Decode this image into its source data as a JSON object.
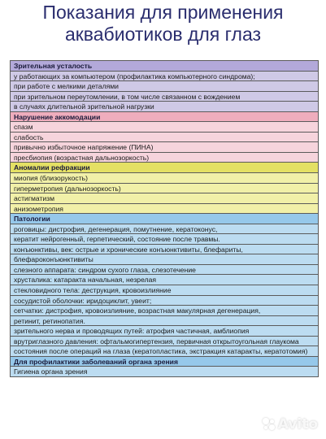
{
  "title_line1": "Показания для применения",
  "title_line2": "аквабиотиков для глаз",
  "groups": [
    {
      "header": "Зрительная усталость",
      "items": [
        "у работающих за компьютером (профилактика компьютерного синдрома);",
        "при работе с мелкими деталями",
        "при зрительном переутомлении, в том числе связанном с вождением",
        "в случаях длительной зрительной нагрузки"
      ]
    },
    {
      "header": "Нарушение аккомодации",
      "items": [
        "спазм",
        "слабость",
        "привычно избыточное напряжение (ПИНА)",
        "пресбиопия (возрастная дальнозоркость)"
      ]
    },
    {
      "header": "Аномалии рефракции",
      "items": [
        "миопия (близорукость)",
        "гиперметропия (дальнозоркость)",
        "астигматизм",
        "анизометропия"
      ]
    },
    {
      "header": "Патологии",
      "items": [
        "роговицы: дистрофия, дегенерация, помутнение, кератоконус,",
        "кератит нейрогенный, герпетический, состояние после травмы.",
        "конъюнктивы, век: острые и хронические конъюнктивиты, блефариты,",
        "блефароконъюнктивиты",
        "слезного аппарата: синдром сухого глаза, слезотечение",
        "хрусталика: катаракта начальная, незрелая",
        "стекловидного тела: деструкция, кровоизлияние",
        "сосудистой оболочки: иридоциклит, увеит;",
        "сетчатки: дистрофия, кровоизлияние, возрастная макулярная дегенерация,",
        "ретинит, ретинопатия.",
        "зрительного нерва и проводящих путей: атрофия частичная, амблиопия",
        "врутриглазного давления: офтальмогипертензия, первичная открытоугольная глаукома",
        "состояния после операций на глаза (кератопластика, экстракция катаракты, кератотомия)"
      ]
    },
    {
      "header": "Для профилактики заболеваний органа зрения",
      "items": [
        "Гигиена органа зрения"
      ]
    }
  ],
  "watermark": "Avito"
}
